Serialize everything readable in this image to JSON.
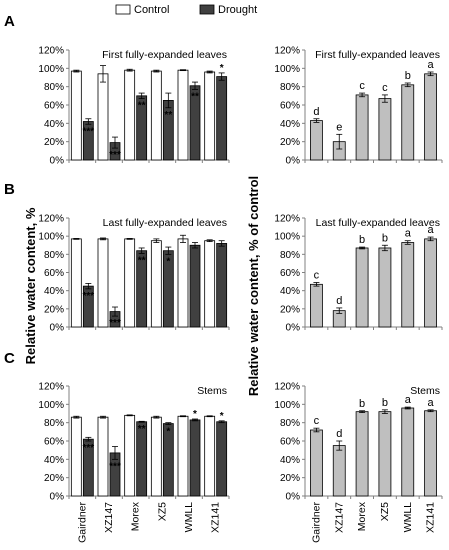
{
  "figure": {
    "legend": [
      {
        "name": "Control",
        "color": "#ffffff"
      },
      {
        "name": "Drought",
        "color": "#404040"
      }
    ],
    "left_ylabel": "Relative water content, %",
    "right_ylabel": "Relative water content, % of control",
    "row_labels": [
      "A",
      "B",
      "C"
    ],
    "categories": [
      "Gairdner",
      "XZ147",
      "Morex",
      "XZ5",
      "WMLL",
      "XZ141"
    ],
    "yticks": [
      "0%",
      "20%",
      "40%",
      "60%",
      "80%",
      "100%",
      "120%"
    ],
    "colors": {
      "control": "#ffffff",
      "drought": "#404040",
      "relative": "#bfbfbf",
      "axis": "#808080"
    }
  },
  "chart_data": [
    {
      "type": "bar",
      "title": "First fully-expanded leaves",
      "categories": [
        "Gairdner",
        "XZ147",
        "Morex",
        "XZ5",
        "WMLL",
        "XZ141"
      ],
      "ylim": [
        0,
        120
      ],
      "series": [
        {
          "name": "Control",
          "values": [
            97,
            94,
            98,
            97,
            98,
            96
          ],
          "errors": [
            1,
            9,
            1,
            1,
            0.5,
            1
          ]
        },
        {
          "name": "Drought",
          "values": [
            42,
            19,
            70,
            65,
            81,
            91
          ],
          "errors": [
            3,
            6,
            3,
            8,
            4,
            4
          ]
        }
      ],
      "annotations": [
        "***",
        "***",
        "**",
        "**",
        "**",
        "*"
      ]
    },
    {
      "type": "bar",
      "title": "First fully-expanded leaves",
      "categories": [
        "Gairdner",
        "XZ147",
        "Morex",
        "XZ5",
        "WMLL",
        "XZ141"
      ],
      "ylim": [
        0,
        120
      ],
      "values": [
        43,
        20,
        71,
        67,
        82,
        94
      ],
      "errors": [
        2,
        8,
        2,
        4,
        2,
        2
      ],
      "annotations": [
        "d",
        "e",
        "c",
        "c",
        "b",
        "a"
      ]
    },
    {
      "type": "bar",
      "title": "Last fully-expanded leaves",
      "categories": [
        "Gairdner",
        "XZ147",
        "Morex",
        "XZ5",
        "WMLL",
        "XZ141"
      ],
      "ylim": [
        0,
        120
      ],
      "series": [
        {
          "name": "Control",
          "values": [
            97,
            97,
            97,
            95,
            97,
            95
          ],
          "errors": [
            0.5,
            1,
            0.5,
            2,
            4,
            1
          ]
        },
        {
          "name": "Drought",
          "values": [
            45,
            17,
            84,
            84,
            90,
            92
          ],
          "errors": [
            3,
            5,
            3,
            4,
            3,
            3
          ]
        }
      ],
      "annotations": [
        "***",
        "***",
        "**",
        "*",
        "",
        ""
      ]
    },
    {
      "type": "bar",
      "title": "Last fully-expanded leaves",
      "categories": [
        "Gairdner",
        "XZ147",
        "Morex",
        "XZ5",
        "WMLL",
        "XZ141"
      ],
      "ylim": [
        0,
        120
      ],
      "values": [
        47,
        18,
        87,
        87,
        93,
        97
      ],
      "errors": [
        2,
        3,
        1,
        3,
        2,
        2
      ],
      "annotations": [
        "c",
        "d",
        "b",
        "b",
        "a",
        "a"
      ]
    },
    {
      "type": "bar",
      "title": "Stems",
      "categories": [
        "Gairdner",
        "XZ147",
        "Morex",
        "XZ5",
        "WMLL",
        "XZ141"
      ],
      "ylim": [
        0,
        120
      ],
      "series": [
        {
          "name": "Control",
          "values": [
            86,
            86,
            88,
            86,
            87,
            87
          ],
          "errors": [
            1,
            1,
            0.5,
            1,
            0.5,
            0.5
          ]
        },
        {
          "name": "Drought",
          "values": [
            62,
            47,
            81,
            79,
            83,
            81
          ],
          "errors": [
            2,
            7,
            0.5,
            1,
            1,
            1
          ]
        }
      ],
      "annotations": [
        "***",
        "***",
        "**",
        "*",
        "*",
        "*"
      ]
    },
    {
      "type": "bar",
      "title": "Stems",
      "categories": [
        "Gairdner",
        "XZ147",
        "Morex",
        "XZ5",
        "WMLL",
        "XZ141"
      ],
      "ylim": [
        0,
        120
      ],
      "values": [
        72,
        55,
        92,
        92,
        96,
        93
      ],
      "errors": [
        2,
        5,
        1,
        2,
        1,
        1
      ],
      "annotations": [
        "c",
        "d",
        "b",
        "b",
        "a",
        "a"
      ]
    }
  ]
}
